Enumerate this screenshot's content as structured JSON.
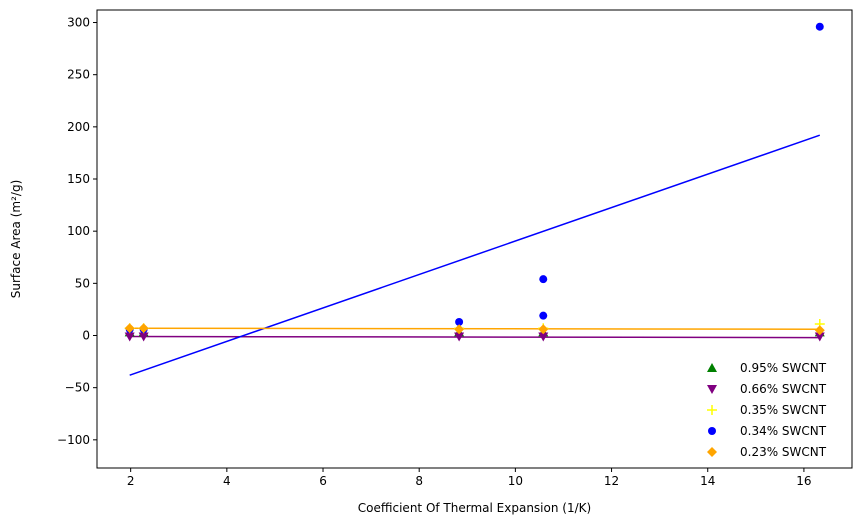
{
  "chart_data": {
    "type": "scatter",
    "title": "",
    "xlabel": "Coefficient Of Thermal Expansion (1/K)",
    "ylabel": "Surface Area (m²/g)",
    "xlim": [
      1.3,
      17.0
    ],
    "ylim": [
      -127,
      312
    ],
    "x_ticks": [
      2,
      4,
      6,
      8,
      10,
      12,
      14,
      16
    ],
    "y_ticks": [
      -100,
      -50,
      0,
      50,
      100,
      150,
      200,
      250,
      300
    ],
    "grid": false,
    "legend_position": "lower right",
    "series": [
      {
        "name": "0.95% SWCNT",
        "marker": "triangle-up",
        "color": "#008000",
        "points": [
          [
            1.98,
            3
          ],
          [
            2.27,
            3
          ],
          [
            8.83,
            3
          ],
          [
            10.58,
            3
          ],
          [
            16.33,
            3
          ]
        ],
        "fit": null
      },
      {
        "name": "0.66% SWCNT",
        "marker": "triangle-down",
        "color": "#800080",
        "points": [
          [
            1.98,
            -1
          ],
          [
            2.27,
            -1
          ],
          [
            8.83,
            -1
          ],
          [
            10.58,
            -1
          ],
          [
            16.33,
            -1
          ]
        ],
        "fit": {
          "x": [
            1.98,
            16.33
          ],
          "y": [
            -1,
            -2
          ],
          "color": "#800080"
        }
      },
      {
        "name": "0.35% SWCNT",
        "marker": "plus",
        "color": "#FFFF00",
        "points": [
          [
            1.98,
            7
          ],
          [
            2.27,
            7
          ],
          [
            8.83,
            7
          ],
          [
            10.58,
            7
          ],
          [
            16.33,
            11
          ]
        ],
        "fit": null
      },
      {
        "name": "0.34% SWCNT",
        "marker": "circle",
        "color": "#0000FF",
        "points": [
          [
            1.98,
            6
          ],
          [
            2.27,
            6
          ],
          [
            8.83,
            13
          ],
          [
            10.58,
            19
          ],
          [
            10.58,
            54
          ],
          [
            16.33,
            296
          ]
        ],
        "fit": {
          "x": [
            1.98,
            16.33
          ],
          "y": [
            -38,
            192
          ],
          "color": "#0000FF"
        }
      },
      {
        "name": "0.23% SWCNT",
        "marker": "diamond",
        "color": "#FFA500",
        "points": [
          [
            1.98,
            7
          ],
          [
            2.27,
            7
          ],
          [
            8.83,
            6
          ],
          [
            10.58,
            6
          ],
          [
            16.33,
            5
          ]
        ],
        "fit": {
          "x": [
            1.98,
            16.33
          ],
          "y": [
            7,
            6
          ],
          "color": "#FFA500"
        }
      }
    ]
  }
}
